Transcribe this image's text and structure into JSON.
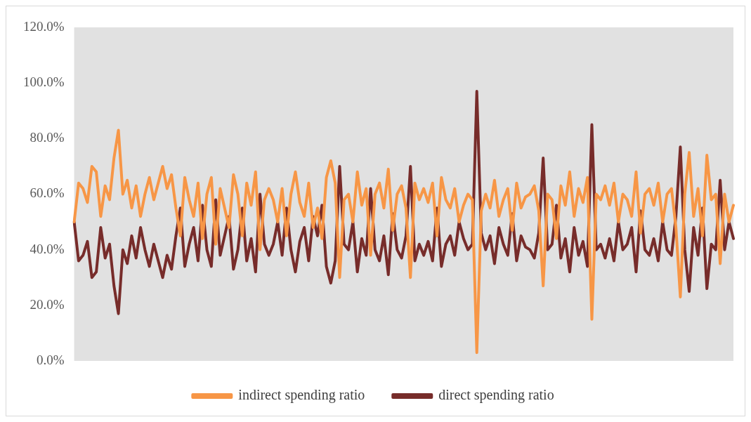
{
  "chart_data": {
    "type": "line",
    "categories": [
      null,
      null,
      null,
      null,
      null,
      null,
      null,
      null,
      null,
      null,
      null,
      null,
      null,
      null,
      null,
      null,
      null,
      null,
      null,
      null,
      null,
      null,
      null,
      null,
      null,
      null,
      null,
      null,
      null,
      null,
      null,
      null,
      null,
      null,
      null,
      null,
      null,
      null,
      null,
      null,
      null,
      null,
      null,
      null,
      null,
      null,
      null,
      null,
      null,
      null,
      null,
      null,
      null,
      null,
      null,
      null,
      null,
      null,
      null,
      null,
      null,
      null,
      null,
      null,
      null,
      null,
      null,
      null,
      null,
      null,
      null,
      null,
      null,
      null,
      null,
      null,
      null,
      null,
      null,
      null,
      null,
      null,
      null,
      null,
      null,
      null,
      null,
      null,
      null,
      null,
      null,
      null,
      null,
      null,
      null,
      null,
      null,
      null,
      null,
      null,
      null,
      null,
      null,
      null,
      null,
      null,
      null,
      null,
      null,
      null,
      null,
      null,
      null,
      null,
      null,
      null,
      null,
      null,
      null,
      null,
      null,
      null,
      null,
      null,
      null,
      null,
      null,
      null,
      null,
      null,
      null,
      null,
      null,
      null,
      null,
      null,
      null,
      null,
      null,
      null,
      null,
      null,
      null,
      null,
      null,
      null,
      null,
      null,
      null,
      null
    ],
    "series": [
      {
        "name": "indirect spending ratio",
        "color": "#f79646",
        "values": [
          50,
          64,
          62,
          57,
          70,
          68,
          52,
          63,
          58,
          73,
          83,
          60,
          65,
          55,
          63,
          52,
          60,
          66,
          58,
          64,
          70,
          62,
          67,
          55,
          45,
          66,
          58,
          52,
          64,
          44,
          60,
          66,
          42,
          62,
          55,
          48,
          67,
          60,
          45,
          64,
          56,
          68,
          40,
          58,
          62,
          58,
          50,
          62,
          45,
          60,
          68,
          57,
          52,
          64,
          48,
          55,
          44,
          66,
          72,
          64,
          30,
          58,
          60,
          50,
          68,
          56,
          62,
          38,
          60,
          64,
          55,
          69,
          47,
          60,
          63,
          55,
          30,
          64,
          58,
          62,
          57,
          64,
          45,
          66,
          58,
          55,
          62,
          50,
          56,
          60,
          58,
          3,
          54,
          60,
          55,
          65,
          52,
          58,
          62,
          47,
          64,
          55,
          59,
          60,
          63,
          54,
          27,
          60,
          58,
          44,
          63,
          56,
          68,
          52,
          62,
          57,
          66,
          15,
          60,
          58,
          63,
          56,
          64,
          50,
          60,
          58,
          52,
          68,
          46,
          60,
          62,
          56,
          64,
          50,
          60,
          62,
          48,
          23,
          60,
          75,
          52,
          62,
          45,
          74,
          58,
          60,
          35,
          60,
          50,
          56
        ]
      },
      {
        "name": "direct spending ratio",
        "color": "#772c2a",
        "values": [
          50,
          36,
          38,
          43,
          30,
          32,
          48,
          37,
          42,
          27,
          17,
          40,
          35,
          45,
          37,
          48,
          40,
          34,
          42,
          36,
          30,
          38,
          33,
          45,
          55,
          34,
          42,
          48,
          36,
          56,
          40,
          34,
          58,
          38,
          45,
          52,
          33,
          40,
          55,
          36,
          44,
          32,
          60,
          42,
          38,
          42,
          50,
          38,
          55,
          40,
          32,
          43,
          48,
          36,
          52,
          45,
          56,
          34,
          28,
          36,
          70,
          42,
          40,
          50,
          32,
          44,
          38,
          62,
          40,
          36,
          45,
          31,
          53,
          40,
          37,
          45,
          70,
          36,
          42,
          38,
          43,
          36,
          55,
          34,
          42,
          45,
          38,
          50,
          44,
          40,
          42,
          97,
          46,
          40,
          45,
          35,
          48,
          42,
          38,
          53,
          36,
          45,
          41,
          40,
          37,
          46,
          73,
          40,
          42,
          56,
          37,
          44,
          32,
          48,
          38,
          43,
          34,
          85,
          40,
          42,
          37,
          44,
          36,
          50,
          40,
          42,
          48,
          32,
          54,
          40,
          38,
          44,
          36,
          50,
          40,
          38,
          52,
          77,
          40,
          25,
          48,
          38,
          55,
          26,
          42,
          40,
          65,
          40,
          50,
          44
        ]
      }
    ],
    "ylim": [
      0,
      120
    ],
    "yticks": [
      {
        "value": 0,
        "label": "0.0%"
      },
      {
        "value": 20,
        "label": "20.0%"
      },
      {
        "value": 40,
        "label": "40.0%"
      },
      {
        "value": 60,
        "label": "60.0%"
      },
      {
        "value": 80,
        "label": "80.0%"
      },
      {
        "value": 100,
        "label": "100.0%"
      },
      {
        "value": 120,
        "label": "120.0%"
      }
    ],
    "grid": false,
    "legend": "bottom",
    "marker": "none",
    "line_style": "solid"
  }
}
